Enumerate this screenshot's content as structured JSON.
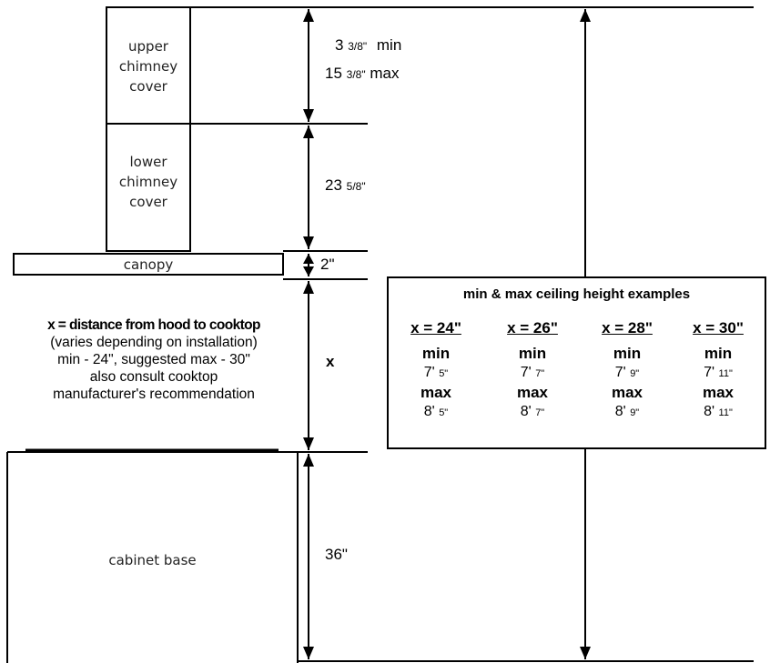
{
  "parts": {
    "upper_chimney": "upper\nchimney\ncover",
    "lower_chimney": "lower\nchimney\ncover",
    "canopy": "canopy",
    "cabinet_base": "cabinet base"
  },
  "dimensions": {
    "upper_min_whole": "3",
    "upper_min_frac": "3/8\"",
    "upper_min_word": "min",
    "upper_max_whole": "15",
    "upper_max_frac": "3/8\"",
    "upper_max_word": "max",
    "lower_whole": "23",
    "lower_frac": "5/8\"",
    "canopy": "2\"",
    "x": "x",
    "cabinet": "36\""
  },
  "note": {
    "title": "x = distance from hood to cooktop",
    "line1": "(varies depending on installation)",
    "line2": "min - 24\", suggested max - 30\"",
    "line3": "also consult cooktop",
    "line4": "manufacturer's recommendation"
  },
  "examples": {
    "title": "min & max ceiling height examples",
    "min_label": "min",
    "max_label": "max",
    "columns": [
      {
        "x": "x = 24\"",
        "min_ft": "7'",
        "min_in": "5\"",
        "max_ft": "8'",
        "max_in": "5\""
      },
      {
        "x": "x = 26\"",
        "min_ft": "7'",
        "min_in": "7\"",
        "max_ft": "8'",
        "max_in": "7\""
      },
      {
        "x": "x = 28\"",
        "min_ft": "7'",
        "min_in": "9\"",
        "max_ft": "8'",
        "max_in": "9\""
      },
      {
        "x": "x = 30\"",
        "min_ft": "7'",
        "min_in": "11\"",
        "max_ft": "8'",
        "max_in": "11\""
      }
    ]
  }
}
